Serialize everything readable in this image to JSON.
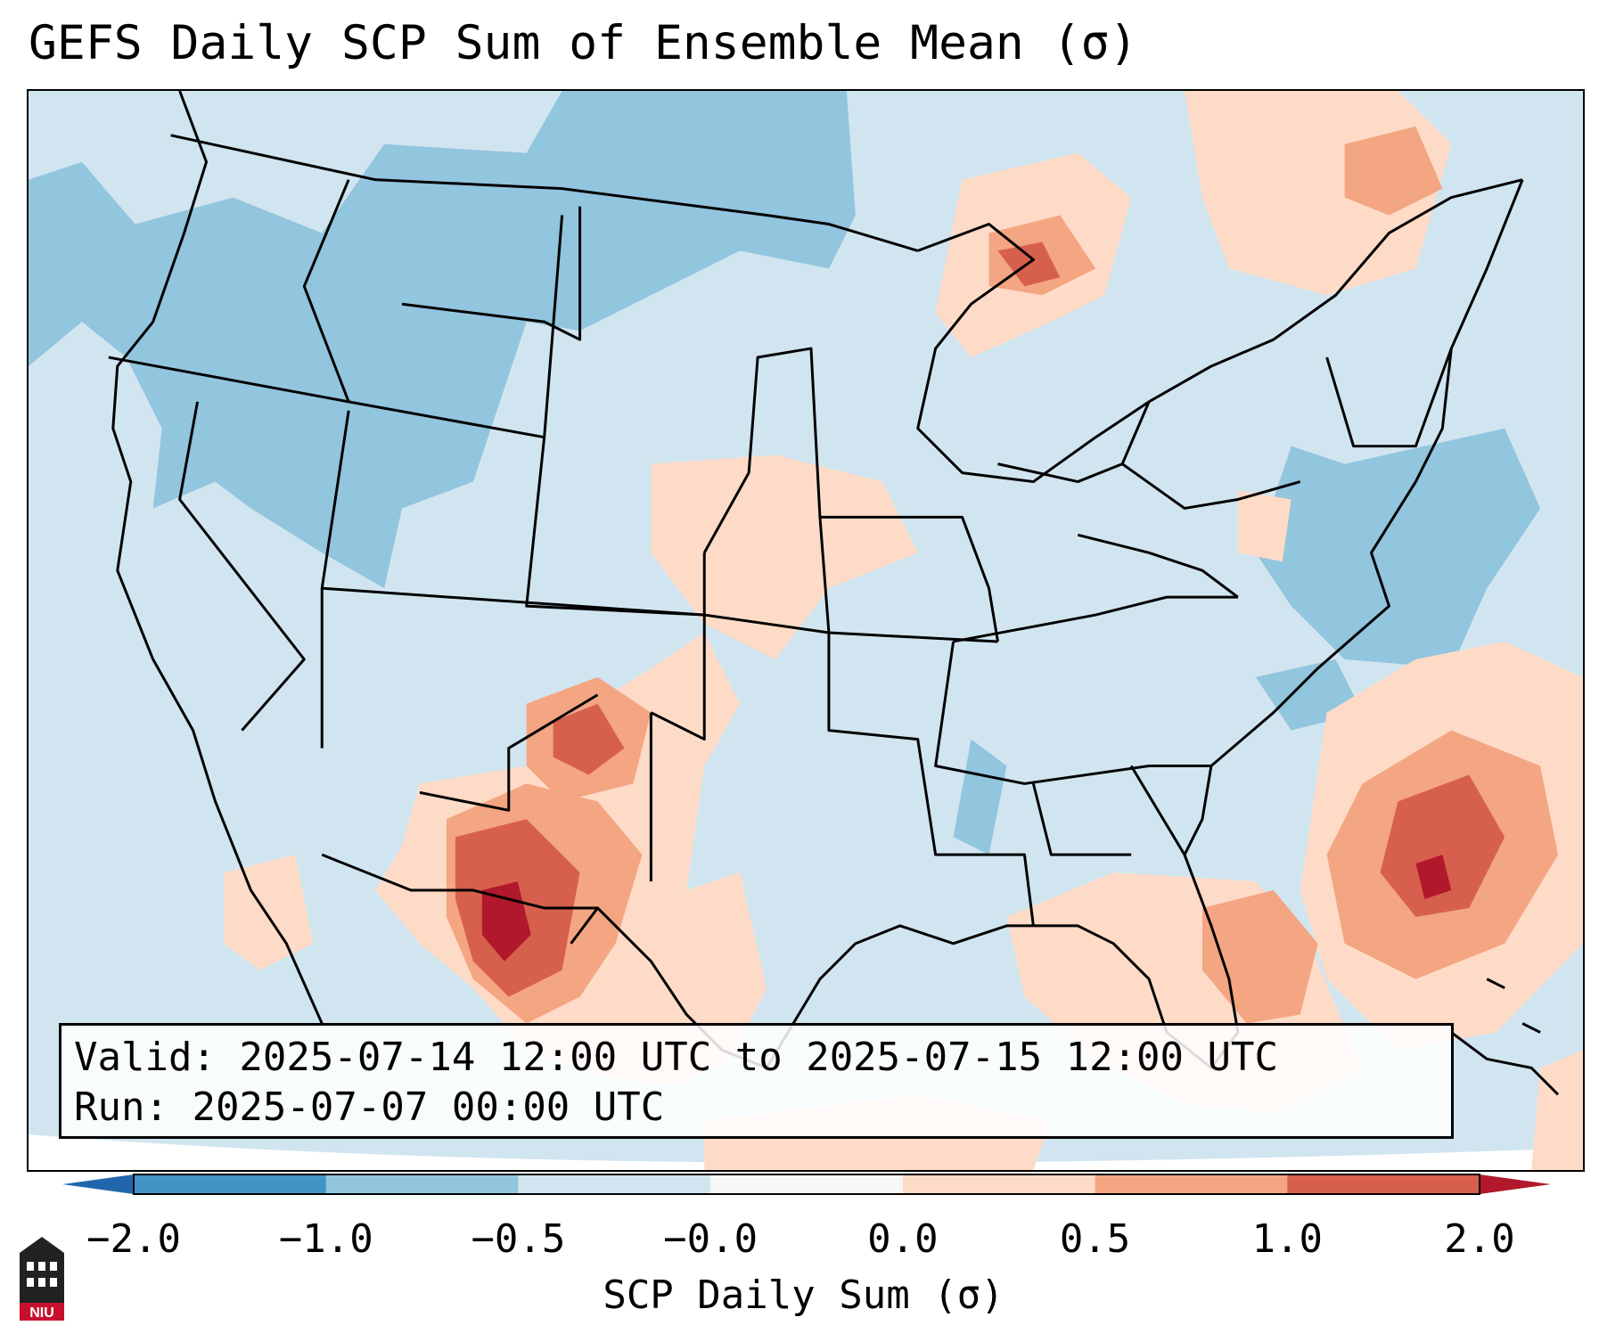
{
  "title": "GEFS Daily SCP Sum of Ensemble Mean (σ)",
  "info": {
    "valid_line": "Valid: 2025-07-14 12:00 UTC to 2025-07-15 12:00 UTC",
    "run_line": "Run:   2025-07-07 00:00 UTC"
  },
  "colorbar": {
    "label": "SCP Daily Sum (σ)",
    "ticks": [
      {
        "value": "−2.0"
      },
      {
        "value": "−1.0"
      },
      {
        "value": "−0.5"
      },
      {
        "value": "−0.0"
      },
      {
        "value": "0.0"
      },
      {
        "value": "0.5"
      },
      {
        "value": "1.0"
      },
      {
        "value": "2.0"
      }
    ],
    "bins": [
      {
        "from": "−2.0",
        "to": "−1.0",
        "color": "#4393c3"
      },
      {
        "from": "−1.0",
        "to": "−0.5",
        "color": "#92c5de"
      },
      {
        "from": "−0.5",
        "to": "−0.0",
        "color": "#d1e5f0"
      },
      {
        "from": "−0.0",
        "to": "0.0",
        "color": "#f7f7f7"
      },
      {
        "from": "0.0",
        "to": "0.5",
        "color": "#fddbc7"
      },
      {
        "from": "0.5",
        "to": "1.0",
        "color": "#f4a582"
      },
      {
        "from": "1.0",
        "to": "2.0",
        "color": "#d6604d"
      }
    ],
    "under_color": "#2166ac",
    "over_color": "#b2182b"
  },
  "colors": {
    "neg_strong": "#92c5de",
    "neg_weak": "#d1e5f0",
    "pos_weak": "#fddbc7",
    "pos_mid": "#f4a582",
    "pos_strong": "#d6604d",
    "pos_max": "#b2182b",
    "border": "#000000"
  },
  "logo": {
    "text": "NIU",
    "icon": "niu-tower-icon"
  }
}
